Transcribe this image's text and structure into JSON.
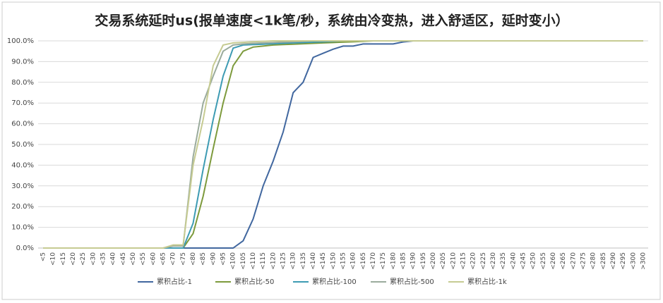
{
  "chart_data": {
    "type": "line",
    "title": "交易系统延时us(报单速度<1k笔/秒，系统由冷变热，进入舒适区，延时变小）",
    "categories": [
      "<5",
      "<10",
      "<15",
      "<20",
      "<25",
      "<30",
      "<35",
      "<40",
      "<45",
      "<50",
      "<55",
      "<60",
      "<65",
      "<70",
      "<75",
      "<80",
      "<85",
      "<90",
      "<95",
      "<100",
      "<105",
      "<110",
      "<115",
      "<120",
      "<125",
      "<130",
      "<135",
      "<140",
      "<145",
      "<150",
      "<155",
      "<160",
      "<165",
      "<170",
      "<175",
      "<180",
      "<185",
      "<190",
      "<195",
      "<200",
      "<205",
      "<210",
      "<215",
      "<220",
      "<225",
      "<230",
      "<235",
      "<240",
      "<245",
      "<250",
      "<255",
      "<260",
      "<265",
      "<270",
      "<275",
      "<280",
      "<285",
      "<290",
      "<295",
      "<300",
      ">300"
    ],
    "series": [
      {
        "name": "累积占比-1",
        "color": "#41679f",
        "values": [
          0,
          0,
          0,
          0,
          0,
          0,
          0,
          0,
          0,
          0,
          0,
          0,
          0,
          0,
          0,
          0,
          0,
          0,
          0,
          0,
          3.5,
          14,
          30,
          42,
          56,
          75,
          80,
          92,
          94,
          96,
          97.5,
          97.5,
          98.5,
          98.5,
          98.5,
          98.5,
          99.5,
          100,
          100,
          100,
          100,
          100,
          100,
          100,
          100,
          100,
          100,
          100,
          100,
          100,
          100,
          100,
          100,
          100,
          100,
          100,
          100,
          100,
          100,
          100,
          100
        ]
      },
      {
        "name": "累积占比-50",
        "color": "#7d9a3c",
        "values": [
          0,
          0,
          0,
          0,
          0,
          0,
          0,
          0,
          0,
          0,
          0,
          0,
          0,
          0,
          0,
          7,
          25,
          48,
          70,
          88,
          95,
          97,
          97.5,
          98,
          98.2,
          98.4,
          98.6,
          98.8,
          99,
          99.2,
          99.4,
          99.6,
          99.8,
          100,
          100,
          100,
          100,
          100,
          100,
          100,
          100,
          100,
          100,
          100,
          100,
          100,
          100,
          100,
          100,
          100,
          100,
          100,
          100,
          100,
          100,
          100,
          100,
          100,
          100,
          100,
          100
        ]
      },
      {
        "name": "累积占比-100",
        "color": "#3d9bb3",
        "values": [
          0,
          0,
          0,
          0,
          0,
          0,
          0,
          0,
          0,
          0,
          0,
          0,
          0,
          0,
          0,
          12,
          38,
          62,
          83,
          96.5,
          98,
          98.2,
          98.4,
          98.6,
          98.8,
          99,
          99.2,
          99.4,
          99.6,
          99.8,
          100,
          100,
          100,
          100,
          100,
          100,
          100,
          100,
          100,
          100,
          100,
          100,
          100,
          100,
          100,
          100,
          100,
          100,
          100,
          100,
          100,
          100,
          100,
          100,
          100,
          100,
          100,
          100,
          100,
          100,
          100
        ]
      },
      {
        "name": "累积占比-500",
        "color": "#9aab9c",
        "values": [
          0,
          0,
          0,
          0,
          0,
          0,
          0,
          0,
          0,
          0,
          0,
          0,
          0,
          1,
          1,
          44,
          70,
          83,
          95,
          98,
          98.5,
          98.8,
          99,
          99.2,
          99.4,
          99.6,
          99.8,
          100,
          100,
          100,
          100,
          100,
          100,
          100,
          100,
          100,
          100,
          100,
          100,
          100,
          100,
          100,
          100,
          100,
          100,
          100,
          100,
          100,
          100,
          100,
          100,
          100,
          100,
          100,
          100,
          100,
          100,
          100,
          100,
          100,
          100
        ]
      },
      {
        "name": "累积占比-1k",
        "color": "#c6cb92",
        "values": [
          0,
          0,
          0,
          0,
          0,
          0,
          0,
          0,
          0,
          0,
          0,
          0,
          0,
          1.5,
          1.5,
          40,
          62,
          88,
          98,
          99,
          99.3,
          99.6,
          99.8,
          100,
          100,
          100,
          100,
          100,
          100,
          100,
          100,
          100,
          100,
          100,
          100,
          100,
          100,
          100,
          100,
          100,
          100,
          100,
          100,
          100,
          100,
          100,
          100,
          100,
          100,
          100,
          100,
          100,
          100,
          100,
          100,
          100,
          100,
          100,
          100,
          100,
          100
        ]
      }
    ],
    "ylim": [
      0,
      100
    ],
    "yticks": [
      {
        "value": 0,
        "label": "0.0%"
      },
      {
        "value": 10,
        "label": "10.0%"
      },
      {
        "value": 20,
        "label": "20.0%"
      },
      {
        "value": 30,
        "label": "30.0%"
      },
      {
        "value": 40,
        "label": "40.0%"
      },
      {
        "value": 50,
        "label": "50.0%"
      },
      {
        "value": 60,
        "label": "60.0%"
      },
      {
        "value": 70,
        "label": "70.0%"
      },
      {
        "value": 80,
        "label": "80.0%"
      },
      {
        "value": 90,
        "label": "90.0%"
      },
      {
        "value": 100,
        "label": "100.0%"
      }
    ],
    "grid": true,
    "legend": "bottom"
  }
}
